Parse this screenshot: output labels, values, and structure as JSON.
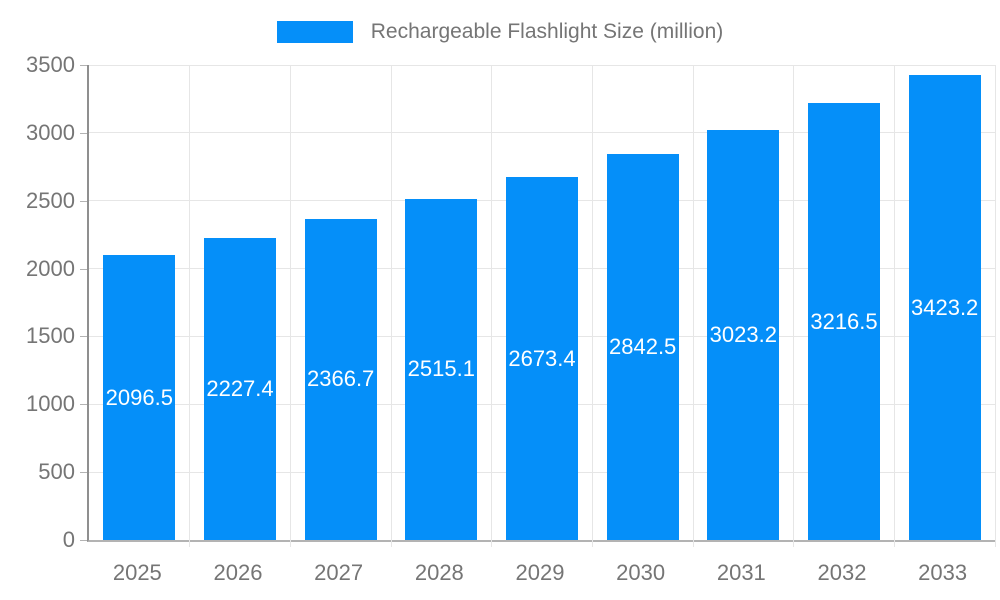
{
  "legend": {
    "label": "Rechargeable Flashlight Size (million)"
  },
  "colors": {
    "bar": "#058ff9",
    "grid": "#e6e6e6",
    "baseline": "#b3b3b3",
    "y_axis_line": "#8f8f8f",
    "tick_text": "#757575",
    "bar_label_text": "#ffffff",
    "background": "#ffffff"
  },
  "chart_data": {
    "type": "bar",
    "title": "",
    "xlabel": "",
    "ylabel": "",
    "series_name": "Rechargeable Flashlight Size (million)",
    "categories": [
      "2025",
      "2026",
      "2027",
      "2028",
      "2029",
      "2030",
      "2031",
      "2032",
      "2033"
    ],
    "values": [
      2096.5,
      2227.4,
      2366.7,
      2515.1,
      2673.4,
      2842.5,
      3023.2,
      3216.5,
      3423.2
    ],
    "bar_labels": [
      "2096.5",
      "2227.4",
      "2366.7",
      "2515.1",
      "2673.4",
      "2842.5",
      "3023.2",
      "3216.5",
      "3423.2"
    ],
    "ylim": [
      0,
      3500
    ],
    "y_ticks": [
      0,
      500,
      1000,
      1500,
      2000,
      2500,
      3000,
      3500
    ],
    "grid": true,
    "legend_position": "top"
  }
}
